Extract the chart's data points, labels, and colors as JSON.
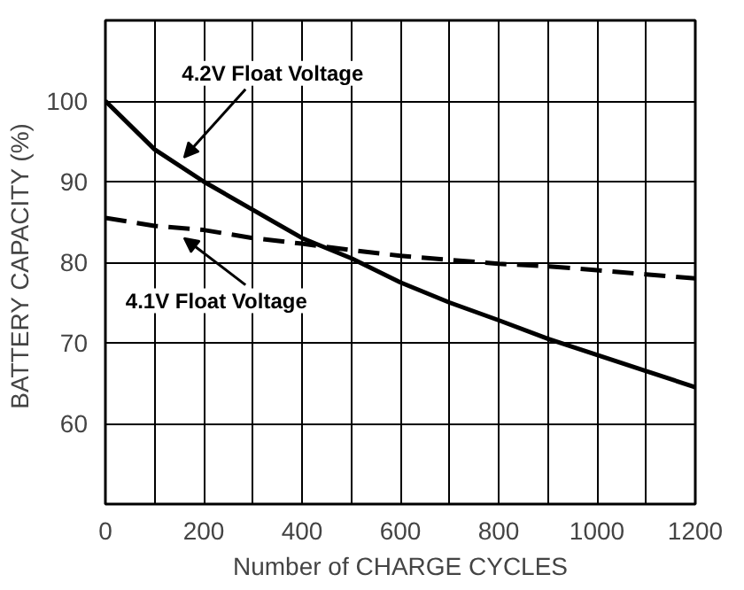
{
  "chart_data": {
    "type": "line",
    "xlabel": "Number of CHARGE CYCLES",
    "ylabel": "BATTERY CAPACITY  (%)",
    "x": [
      0,
      100,
      200,
      300,
      400,
      500,
      600,
      700,
      800,
      900,
      1000,
      1100,
      1200
    ],
    "series": [
      {
        "color": "#000000",
        "line_style": "solid",
        "values": [
          100,
          94,
          90,
          86.5,
          83,
          80.5,
          77.5,
          75,
          72.8,
          70.5,
          68.5,
          66.5,
          64.5
        ]
      },
      {
        "color": "#000000",
        "line_style": "dashed",
        "values": [
          85.5,
          84.5,
          84,
          83,
          82.3,
          81.5,
          80.8,
          80.3,
          79.8,
          79.5,
          79,
          78.5,
          78
        ]
      }
    ],
    "annotations": [
      {
        "text": "4.2V Float Voltage",
        "x": 160,
        "y": 92
      },
      {
        "text": "4.1V Float Voltage",
        "x": 160,
        "y": 84
      }
    ],
    "xlim": [
      0,
      1200
    ],
    "ylim": [
      50,
      110
    ],
    "xticks": [
      0,
      {
        "value": 100,
        "label": null
      },
      200,
      {
        "value": 300,
        "label": null
      },
      400,
      {
        "value": 500,
        "label": null
      },
      600,
      {
        "value": 700,
        "label": null
      },
      800,
      {
        "value": 900,
        "label": null
      },
      1000,
      {
        "value": 1100,
        "label": null
      },
      1200
    ],
    "yticks": [
      60,
      70,
      80,
      90,
      100
    ],
    "grid": true,
    "marker": "none"
  }
}
